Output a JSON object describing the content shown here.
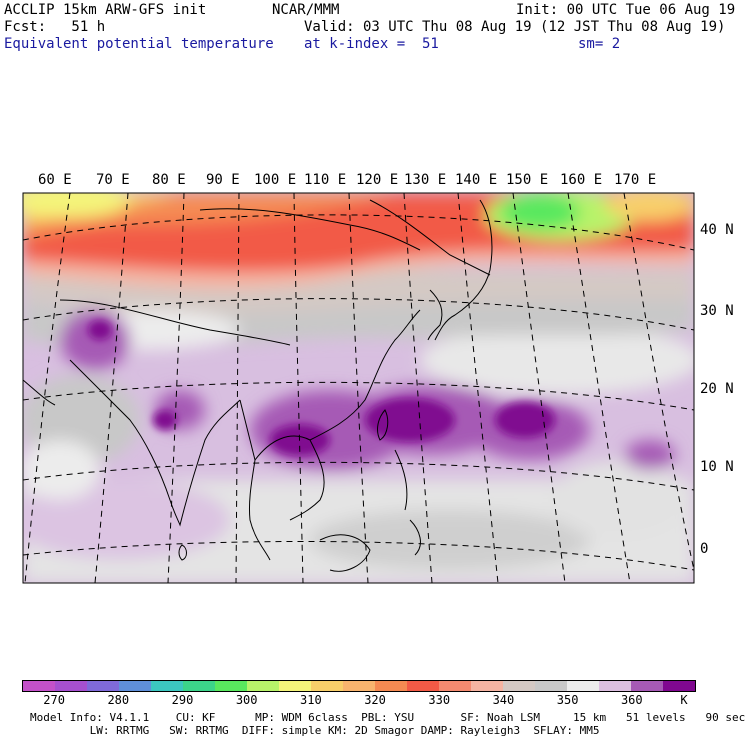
{
  "header": {
    "model": "ACCLIP 15km ARW-GFS init",
    "org": "NCAR/MMM",
    "init": "Init: 00 UTC Tue 06 Aug 19",
    "fcst": "Fcst:   51 h",
    "valid": "Valid: 03 UTC Thu 08 Aug 19 (12 JST Thu 08 Aug 19)",
    "field": "Equivalent potential temperature",
    "level": "at k-index =  51",
    "smooth": "sm= 2"
  },
  "map": {
    "lon_labels": [
      "60 E",
      "70 E",
      "80 E",
      "90 E",
      "100 E",
      "110 E",
      "120 E",
      "130 E",
      "140 E",
      "150 E",
      "160 E",
      "170 E"
    ],
    "lat_labels": [
      "40 N",
      "30 N",
      "20 N",
      "10 N",
      "0"
    ]
  },
  "colorbar": {
    "colors": [
      "#c451c9",
      "#a650cf",
      "#7f6ad9",
      "#5f8fd9",
      "#3cc7c0",
      "#3cd48a",
      "#59e85e",
      "#b8f36a",
      "#f4f47a",
      "#f8cf6a",
      "#f8b46e",
      "#f58a52",
      "#f25a46",
      "#f48a70",
      "#f5b4a2",
      "#d4c9c4",
      "#c8c8c8",
      "#ececec",
      "#dcbfe0",
      "#a65ab5",
      "#800890"
    ],
    "ticks": [
      "270",
      "280",
      "290",
      "300",
      "310",
      "320",
      "330",
      "340",
      "350",
      "360"
    ],
    "unit": "K"
  },
  "footer": {
    "line1": "Model Info: V4.1.1    CU: KF      MP: WDM 6class  PBL: YSU       SF: Noah LSM     15 km   51 levels   90 sec",
    "line2": "         LW: RRTMG   SW: RRTMG  DIFF: simple KM: 2D Smagor DAMP: Rayleigh3  SFLAY: MM5"
  }
}
